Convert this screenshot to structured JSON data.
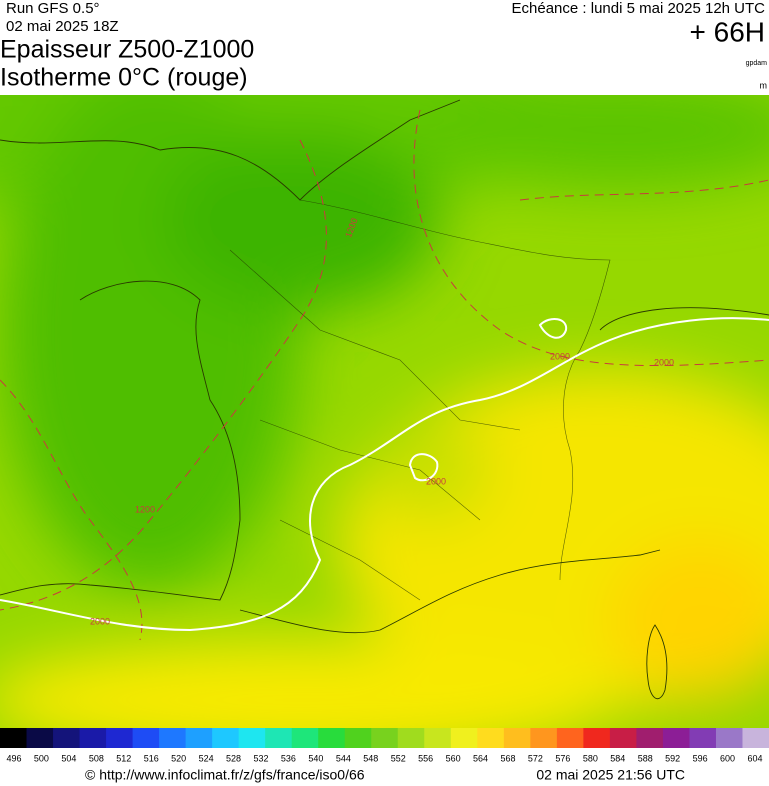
{
  "header": {
    "run": "Run GFS 0.5°",
    "run_date": "02 mai 2025 18Z",
    "title_line1": "Epaisseur Z500-Z1000",
    "title_line2": "Isotherme 0°C (rouge)",
    "echeance": "Echéance : lundi 5 mai 2025 12h UTC",
    "lead_time": "+ 66H",
    "unit_thickness": "gpdam",
    "unit_isotherm": "m"
  },
  "map": {
    "contour_labels": [
      1200,
      2000,
      2000,
      2000,
      1200,
      2000
    ]
  },
  "colorbar": {
    "labels": [
      496,
      500,
      504,
      508,
      512,
      516,
      520,
      524,
      528,
      532,
      536,
      540,
      544,
      548,
      552,
      556,
      560,
      564,
      568,
      572,
      576,
      580,
      584,
      588,
      592,
      596,
      600,
      604
    ],
    "colors": [
      "#000000",
      "#0a0a46",
      "#14147a",
      "#1a1aa8",
      "#1e28d2",
      "#1e4cf5",
      "#1e78ff",
      "#1ea0ff",
      "#1ec8ff",
      "#1ee6f0",
      "#1ee6b4",
      "#1ee67a",
      "#28dc3c",
      "#50d21e",
      "#78d21e",
      "#a0dc1e",
      "#c8e61e",
      "#f0f01e",
      "#ffdc1e",
      "#ffbe1e",
      "#ff961e",
      "#ff641e",
      "#f0281e",
      "#c81e46",
      "#a01e6e",
      "#8c1e96",
      "#823cb4",
      "#9a78c8",
      "#c8b4dc"
    ]
  },
  "footer": {
    "url": "© http://www.infoclimat.fr/z/gfs/france/iso0/66",
    "timestamp": "02 mai 2025 21:56 UTC"
  }
}
